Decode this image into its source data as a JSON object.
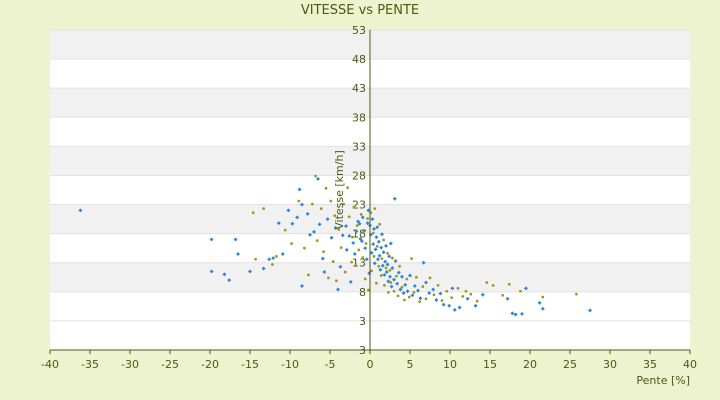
{
  "chart_data": {
    "type": "scatter",
    "title": "VITESSE vs PENTE",
    "xlabel": "Pente [%]",
    "ylabel": "Vitesse [km/h]",
    "xlim": [
      -40,
      40
    ],
    "ylim": [
      -2,
      53
    ],
    "x_ticks": [
      -40,
      -35,
      -30,
      -25,
      -20,
      -15,
      -10,
      -5,
      0,
      5,
      10,
      15,
      20,
      25,
      30,
      35,
      40
    ],
    "y_ticks": [
      3,
      8,
      13,
      18,
      23,
      28,
      33,
      38,
      43,
      48,
      53
    ],
    "bottom_tick_label": "3",
    "grid": "horizontal bands",
    "legend": "none",
    "colors": {
      "background": "#eef3cf",
      "plot_bg": "#ffffff",
      "band": "#f1f1f1",
      "text": "#4a5a12",
      "series_a": "#2f86d4",
      "series_b": "#9a9a1c"
    },
    "series": [
      {
        "color": "#2f86d4",
        "points": [
          [
            -36.2,
            22
          ],
          [
            -19.8,
            17
          ],
          [
            -19.8,
            11.5
          ],
          [
            -18.2,
            11
          ],
          [
            -17.6,
            10
          ],
          [
            -16.8,
            17
          ],
          [
            -16.5,
            14.5
          ],
          [
            -15,
            11.5
          ],
          [
            -13.3,
            12
          ],
          [
            -12.6,
            13.6
          ],
          [
            -12.1,
            13.8
          ],
          [
            -11.4,
            19.8
          ],
          [
            -10.9,
            14.5
          ],
          [
            -10.2,
            22
          ],
          [
            -9.7,
            19.7
          ],
          [
            -9.1,
            20.8
          ],
          [
            -8.8,
            25.6
          ],
          [
            -8.5,
            23
          ],
          [
            -8.5,
            9
          ],
          [
            -7.8,
            21.4
          ],
          [
            -7.5,
            17.8
          ],
          [
            -7,
            18.3
          ],
          [
            -6.5,
            27.4
          ],
          [
            -6.3,
            19.6
          ],
          [
            -5.9,
            13.7
          ],
          [
            -5.7,
            11.4
          ],
          [
            -5.3,
            20.5
          ],
          [
            -4.8,
            17.3
          ],
          [
            -4.3,
            19
          ],
          [
            -4,
            8.4
          ],
          [
            -3.7,
            12.3
          ],
          [
            -3.4,
            17.7
          ],
          [
            -3,
            19.3
          ],
          [
            -2.9,
            15.2
          ],
          [
            -2.6,
            17.6
          ],
          [
            -2.4,
            9.7
          ],
          [
            -2.1,
            16.4
          ],
          [
            -1.9,
            14.5
          ],
          [
            -1.7,
            18.4
          ],
          [
            -1.5,
            20.1
          ],
          [
            -1.3,
            19.7
          ],
          [
            -1.2,
            17.1
          ],
          [
            -1,
            16.7
          ],
          [
            -0.9,
            20.8
          ],
          [
            -0.7,
            18.5
          ],
          [
            -0.6,
            15.5
          ],
          [
            -0.4,
            13.6
          ],
          [
            -0.3,
            19.8
          ],
          [
            -0.2,
            22
          ],
          [
            -0.1,
            11.2
          ],
          [
            0,
            19.4
          ],
          [
            0.1,
            17.8
          ],
          [
            0.2,
            14.7
          ],
          [
            0.3,
            20.5
          ],
          [
            0.4,
            16.2
          ],
          [
            0.5,
            18.8
          ],
          [
            0.6,
            12.9
          ],
          [
            0.7,
            15.3
          ],
          [
            0.8,
            17.4
          ],
          [
            0.9,
            19.1
          ],
          [
            1,
            13.6
          ],
          [
            1.1,
            16.6
          ],
          [
            1.2,
            14.2
          ],
          [
            1.3,
            11.8
          ],
          [
            1.4,
            15.6
          ],
          [
            1.5,
            17.9
          ],
          [
            1.6,
            12.5
          ],
          [
            1.7,
            14.8
          ],
          [
            1.8,
            10.9
          ],
          [
            1.9,
            13.2
          ],
          [
            2,
            15.9
          ],
          [
            2.1,
            11.4
          ],
          [
            2.2,
            12.7
          ],
          [
            2.3,
            9.8
          ],
          [
            2.4,
            14.1
          ],
          [
            2.5,
            10.6
          ],
          [
            2.6,
            16.3
          ],
          [
            2.7,
            8.9
          ],
          [
            2.8,
            12.1
          ],
          [
            3,
            10.1
          ],
          [
            3.1,
            24
          ],
          [
            3.2,
            13.3
          ],
          [
            3.4,
            9.4
          ],
          [
            3.6,
            11.3
          ],
          [
            3.8,
            8.4
          ],
          [
            4,
            10.6
          ],
          [
            4.2,
            7.8
          ],
          [
            4.4,
            9.2
          ],
          [
            4.7,
            8.1
          ],
          [
            5,
            10.8
          ],
          [
            5.3,
            7.4
          ],
          [
            5.6,
            9
          ],
          [
            6,
            8.2
          ],
          [
            6.3,
            6.9
          ],
          [
            6.7,
            13
          ],
          [
            7,
            9.6
          ],
          [
            7.4,
            7.8
          ],
          [
            7.9,
            8.4
          ],
          [
            8.3,
            6.6
          ],
          [
            8.8,
            7.7
          ],
          [
            9.2,
            5.8
          ],
          [
            9.9,
            5.6
          ],
          [
            10.3,
            8.6
          ],
          [
            10.6,
            4.9
          ],
          [
            11.2,
            5.3
          ],
          [
            12.2,
            6.8
          ],
          [
            13.2,
            5.6
          ],
          [
            14.1,
            7.5
          ],
          [
            17.2,
            6.8
          ],
          [
            17.8,
            4.3
          ],
          [
            18.2,
            4.1
          ],
          [
            19,
            4.2
          ],
          [
            19.5,
            8.6
          ],
          [
            21.2,
            6.1
          ],
          [
            21.6,
            5.1
          ],
          [
            27.5,
            4.8
          ]
        ]
      },
      {
        "color": "#9a9a1c",
        "points": [
          [
            -14.6,
            21.6
          ],
          [
            -14.3,
            13.6
          ],
          [
            -13.3,
            22.3
          ],
          [
            -12.2,
            12.7
          ],
          [
            -11.7,
            14.1
          ],
          [
            -10.6,
            18.6
          ],
          [
            -9.8,
            16.3
          ],
          [
            -8.9,
            23.6
          ],
          [
            -8.2,
            15.5
          ],
          [
            -7.7,
            10.9
          ],
          [
            -7.2,
            23.1
          ],
          [
            -6.8,
            27.9
          ],
          [
            -6.6,
            16.8
          ],
          [
            -6.1,
            22.3
          ],
          [
            -5.8,
            14.9
          ],
          [
            -5.5,
            25.8
          ],
          [
            -5.2,
            10.4
          ],
          [
            -4.9,
            23.6
          ],
          [
            -4.6,
            13.2
          ],
          [
            -4.4,
            21.1
          ],
          [
            -4.2,
            9.9
          ],
          [
            -3.9,
            18.7
          ],
          [
            -3.6,
            15.6
          ],
          [
            -3.3,
            23.1
          ],
          [
            -3.1,
            11.4
          ],
          [
            -2.8,
            25.9
          ],
          [
            -2.6,
            20.9
          ],
          [
            -2.3,
            13.1
          ],
          [
            -2.2,
            17.4
          ],
          [
            -2,
            22.6
          ],
          [
            -1.8,
            12.5
          ],
          [
            -1.6,
            19.4
          ],
          [
            -1.4,
            15.2
          ],
          [
            -1.1,
            21.3
          ],
          [
            -0.9,
            13.9
          ],
          [
            -0.8,
            18.3
          ],
          [
            -0.6,
            10.2
          ],
          [
            -0.5,
            16.3
          ],
          [
            -0.3,
            20.6
          ],
          [
            -0.2,
            8.3
          ],
          [
            0.1,
            21.6
          ],
          [
            0.2,
            11.6
          ],
          [
            0.4,
            18.1
          ],
          [
            0.5,
            14.1
          ],
          [
            0.6,
            22.3
          ],
          [
            0.8,
            9.5
          ],
          [
            0.9,
            15.8
          ],
          [
            1.1,
            12.4
          ],
          [
            1.2,
            19.6
          ],
          [
            1.4,
            10.8
          ],
          [
            1.5,
            13.7
          ],
          [
            1.7,
            16.9
          ],
          [
            1.8,
            9.1
          ],
          [
            2,
            12.1
          ],
          [
            2.2,
            14.6
          ],
          [
            2.3,
            7.9
          ],
          [
            2.5,
            11.7
          ],
          [
            2.6,
            9.6
          ],
          [
            2.8,
            13.8
          ],
          [
            3,
            8.1
          ],
          [
            3.3,
            10.7
          ],
          [
            3.5,
            7.3
          ],
          [
            3.7,
            12.4
          ],
          [
            4,
            8.8
          ],
          [
            4.3,
            6.6
          ],
          [
            4.6,
            10.2
          ],
          [
            4.9,
            7.1
          ],
          [
            5.2,
            13.7
          ],
          [
            5.5,
            7.9
          ],
          [
            5.8,
            10.5
          ],
          [
            6.2,
            6.3
          ],
          [
            6.6,
            8.9
          ],
          [
            7,
            6.8
          ],
          [
            7.5,
            10.4
          ],
          [
            8,
            7.5
          ],
          [
            8.5,
            9.1
          ],
          [
            9,
            6.5
          ],
          [
            9.6,
            8.1
          ],
          [
            10.2,
            7
          ],
          [
            11,
            8.6
          ],
          [
            11.6,
            7.2
          ],
          [
            12,
            8.1
          ],
          [
            12.6,
            7.6
          ],
          [
            13.4,
            6.4
          ],
          [
            14.6,
            9.6
          ],
          [
            15.4,
            9.1
          ],
          [
            16.6,
            7.4
          ],
          [
            17.4,
            9.3
          ],
          [
            18.8,
            8.1
          ],
          [
            21.6,
            7.1
          ],
          [
            25.8,
            7.6
          ]
        ]
      }
    ]
  }
}
